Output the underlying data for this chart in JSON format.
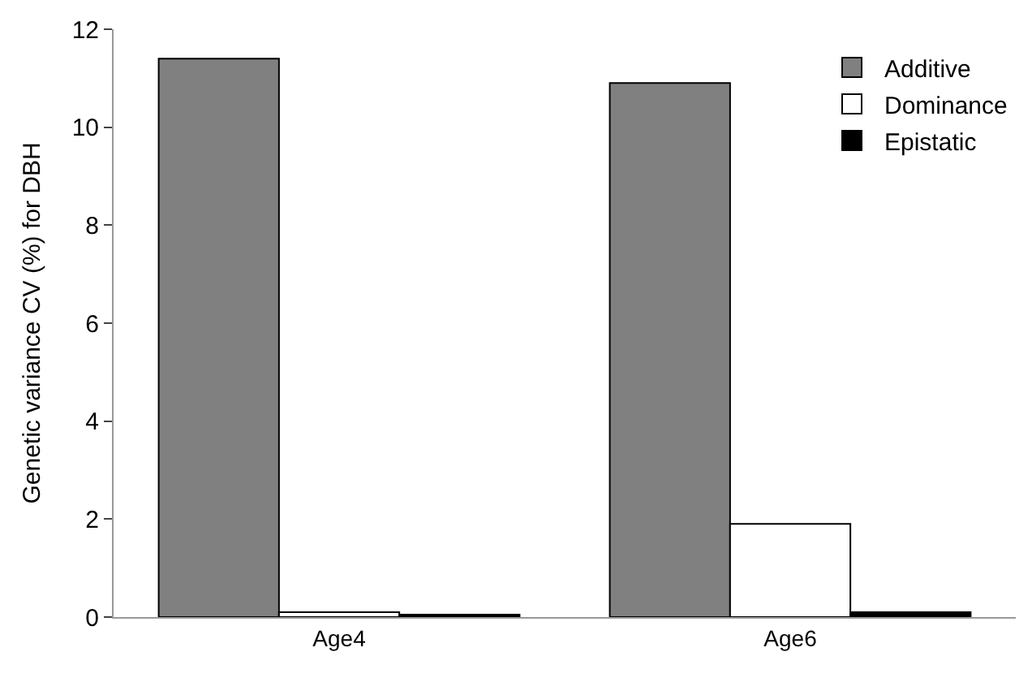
{
  "chart_data": {
    "type": "bar",
    "ylabel": "Genetic variance CV (%) for DBH",
    "categories": [
      "Age4",
      "Age6"
    ],
    "series": [
      {
        "name": "Additive",
        "color": "#808080",
        "values": [
          11.4,
          10.9
        ]
      },
      {
        "name": "Dominance",
        "color": "#ffffff",
        "values": [
          0.1,
          1.9
        ]
      },
      {
        "name": "Epistatic",
        "color": "#000000",
        "values": [
          0.05,
          0.1
        ]
      }
    ],
    "ylim": [
      0,
      12
    ],
    "yticks": [
      0,
      2,
      4,
      6,
      8,
      10,
      12
    ],
    "legend": "top right"
  }
}
